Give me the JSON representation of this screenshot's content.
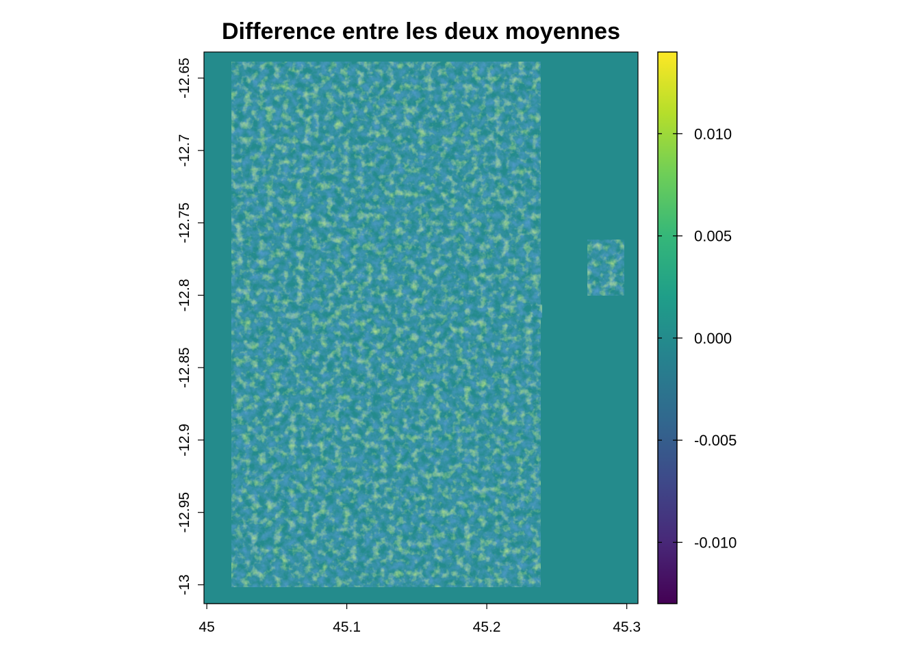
{
  "chart_data": {
    "type": "heatmap",
    "title": "Difference entre les deux moyennes",
    "xlabel": "",
    "ylabel": "",
    "x_ticks": [
      45,
      45.1,
      45.2,
      45.3
    ],
    "x_tick_labels": [
      "45",
      "45.1",
      "45.2",
      "45.3"
    ],
    "xlim": [
      44.998,
      45.308
    ],
    "y_ticks": [
      -12.65,
      -12.7,
      -12.75,
      -12.8,
      -12.85,
      -12.9,
      -12.95,
      -13
    ],
    "y_tick_labels": [
      "-12.65",
      "-12.7",
      "-12.75",
      "-12.8",
      "-12.85",
      "-12.9",
      "-12.95",
      "-13"
    ],
    "ylim": [
      -13.013,
      -12.632
    ],
    "background_value": 0.0,
    "colorbar": {
      "colormap": "viridis",
      "range": [
        -0.013,
        0.014
      ],
      "ticks": [
        -0.01,
        -0.005,
        0.0,
        0.005,
        0.01
      ],
      "tick_labels": [
        "-0.010",
        "-0.005",
        "0.000",
        "0.005",
        "0.010"
      ],
      "stops": [
        "#440154",
        "#482878",
        "#3e4989",
        "#31688e",
        "#26828e",
        "#1f9e89",
        "#35b779",
        "#6ece58",
        "#b5de2b",
        "#fde725"
      ]
    },
    "legend_position": "right",
    "grid": false
  }
}
